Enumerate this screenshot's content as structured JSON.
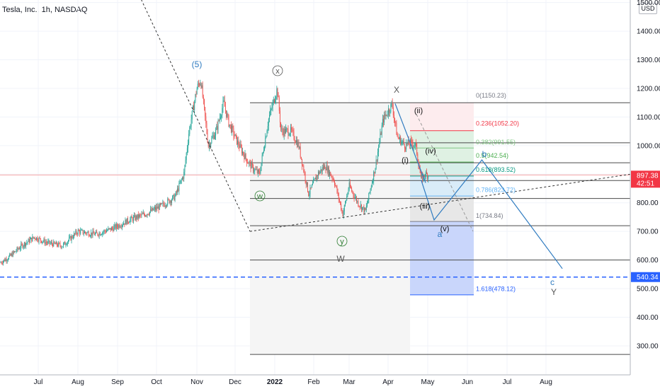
{
  "header": {
    "symbol_label": "Tesla, Inc., 1h, NASDAQ"
  },
  "price_axis": {
    "currency": "USD"
  },
  "current_price": {
    "value": "897.38",
    "countdown": "42:51",
    "color": "#f23645"
  },
  "alert_line": {
    "value": "540.34",
    "color": "#2962ff"
  },
  "chart_data": {
    "type": "candlestick",
    "title": "Tesla, Inc., 1h, NASDAQ",
    "xlabel": "",
    "ylabel": "",
    "x_ticks": [
      "Jul",
      "Aug",
      "Sep",
      "Oct",
      "Nov",
      "Dec",
      "2022",
      "Feb",
      "Mar",
      "Apr",
      "May",
      "Jun",
      "Jul",
      "Aug"
    ],
    "y_ticks": [
      300,
      400,
      500,
      600,
      700,
      800,
      900,
      1000,
      1100,
      1200,
      1300,
      1400,
      1500
    ],
    "ylim": [
      220,
      1535
    ],
    "grid": true,
    "up_color": "#26a69a",
    "down_color": "#ef5350",
    "price_path": [
      [
        "2021-06-01",
        590
      ],
      [
        "2021-06-08",
        610
      ],
      [
        "2021-06-18",
        650
      ],
      [
        "2021-06-28",
        680
      ],
      [
        "2021-07-08",
        660
      ],
      [
        "2021-07-20",
        650
      ],
      [
        "2021-08-01",
        700
      ],
      [
        "2021-08-15",
        690
      ],
      [
        "2021-08-28",
        710
      ],
      [
        "2021-09-10",
        740
      ],
      [
        "2021-09-22",
        760
      ],
      [
        "2021-10-05",
        790
      ],
      [
        "2021-10-15",
        820
      ],
      [
        "2021-10-22",
        900
      ],
      [
        "2021-10-26",
        1050
      ],
      [
        "2021-11-01",
        1200
      ],
      [
        "2021-11-04",
        1230
      ],
      [
        "2021-11-10",
        1000
      ],
      [
        "2021-11-16",
        1050
      ],
      [
        "2021-11-22",
        1150
      ],
      [
        "2021-11-26",
        1080
      ],
      [
        "2021-12-03",
        1010
      ],
      [
        "2021-12-10",
        950
      ],
      [
        "2021-12-15",
        920
      ],
      [
        "2021-12-20",
        900
      ],
      [
        "2021-12-27",
        1090
      ],
      [
        "2022-01-03",
        1200
      ],
      [
        "2022-01-06",
        1050
      ],
      [
        "2022-01-14",
        1050
      ],
      [
        "2022-01-20",
        1000
      ],
      [
        "2022-01-28",
        830
      ],
      [
        "2022-02-04",
        900
      ],
      [
        "2022-02-10",
        930
      ],
      [
        "2022-02-17",
        880
      ],
      [
        "2022-02-24",
        760
      ],
      [
        "2022-03-01",
        860
      ],
      [
        "2022-03-08",
        800
      ],
      [
        "2022-03-14",
        770
      ],
      [
        "2022-03-22",
        930
      ],
      [
        "2022-03-28",
        1090
      ],
      [
        "2022-04-04",
        1145
      ],
      [
        "2022-04-08",
        1030
      ],
      [
        "2022-04-14",
        1000
      ],
      [
        "2022-04-19",
        1010
      ],
      [
        "2022-04-22",
        1000
      ],
      [
        "2022-04-26",
        880
      ],
      [
        "2022-04-29",
        900
      ],
      [
        "2022-05-02",
        895
      ]
    ],
    "fibonacci": [
      {
        "label": "0(1150.23)",
        "level": 1150.23
      },
      {
        "label": "0.236(1052.20)",
        "level": 1052.2
      },
      {
        "label": "0.382(991.55)",
        "level": 991.55
      },
      {
        "label": "0.5(942.54)",
        "level": 942.54
      },
      {
        "label": "0.618(893.52)",
        "level": 893.52
      },
      {
        "label": "0.786(823.72)",
        "level": 823.72
      },
      {
        "label": "1(734.84)",
        "level": 734.84
      },
      {
        "label": "1.618(478.12)",
        "level": 478.12
      }
    ],
    "horizontal_levels": [
      1150,
      1010,
      940,
      878,
      815,
      720,
      600,
      270
    ],
    "wave_labels": [
      "(5)",
      "x",
      "w",
      "y",
      "W",
      "X",
      "(i)",
      "(ii)",
      "(iii)",
      "(iv)",
      "(v)",
      "a",
      "b",
      "c",
      "Y"
    ],
    "projection_path": [
      [
        "2022-04-26",
        880
      ],
      [
        "2022-05-06",
        740
      ],
      [
        "2022-06-12",
        950
      ],
      [
        "2022-08-14",
        570
      ]
    ]
  }
}
